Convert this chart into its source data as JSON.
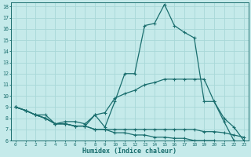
{
  "xlabel": "Humidex (Indice chaleur)",
  "bg_color": "#c5eaea",
  "line_color": "#1a6e6e",
  "grid_color": "#a8d8d8",
  "x": [
    0,
    1,
    2,
    3,
    4,
    5,
    6,
    7,
    8,
    9,
    10,
    11,
    12,
    13,
    14,
    15,
    16,
    17,
    18,
    19,
    20,
    21,
    22,
    23
  ],
  "line_peak": [
    9.0,
    8.7,
    8.3,
    8.3,
    7.5,
    7.7,
    7.7,
    7.5,
    8.3,
    7.2,
    9.5,
    12.0,
    12.0,
    16.3,
    16.5,
    18.2,
    16.3,
    15.7,
    15.2,
    9.5,
    9.5,
    8.0,
    7.2,
    6.0
  ],
  "line_upper": [
    9.0,
    8.7,
    8.3,
    8.0,
    7.5,
    7.5,
    7.3,
    7.3,
    8.3,
    8.5,
    9.8,
    10.2,
    10.5,
    11.0,
    11.2,
    11.5,
    11.5,
    11.5,
    11.5,
    11.5,
    9.5,
    7.7,
    6.0,
    5.8
  ],
  "line_mid": [
    9.0,
    8.7,
    8.3,
    8.0,
    7.5,
    7.5,
    7.3,
    7.3,
    7.0,
    7.0,
    7.0,
    7.0,
    7.0,
    7.0,
    7.0,
    7.0,
    7.0,
    7.0,
    7.0,
    6.8,
    6.8,
    6.7,
    6.5,
    6.3
  ],
  "line_lower": [
    9.0,
    8.7,
    8.3,
    8.0,
    7.5,
    7.5,
    7.3,
    7.3,
    7.0,
    7.0,
    6.7,
    6.7,
    6.5,
    6.5,
    6.3,
    6.3,
    6.2,
    6.2,
    6.0,
    6.0,
    6.0,
    5.8,
    5.8,
    5.7
  ],
  "xlim": [
    -0.5,
    23.5
  ],
  "ylim": [
    6,
    18.4
  ],
  "yticks": [
    6,
    7,
    8,
    9,
    10,
    11,
    12,
    13,
    14,
    15,
    16,
    17,
    18
  ],
  "xticks": [
    0,
    1,
    2,
    3,
    4,
    5,
    6,
    7,
    8,
    9,
    10,
    11,
    12,
    13,
    14,
    15,
    16,
    17,
    18,
    19,
    20,
    21,
    22,
    23
  ]
}
